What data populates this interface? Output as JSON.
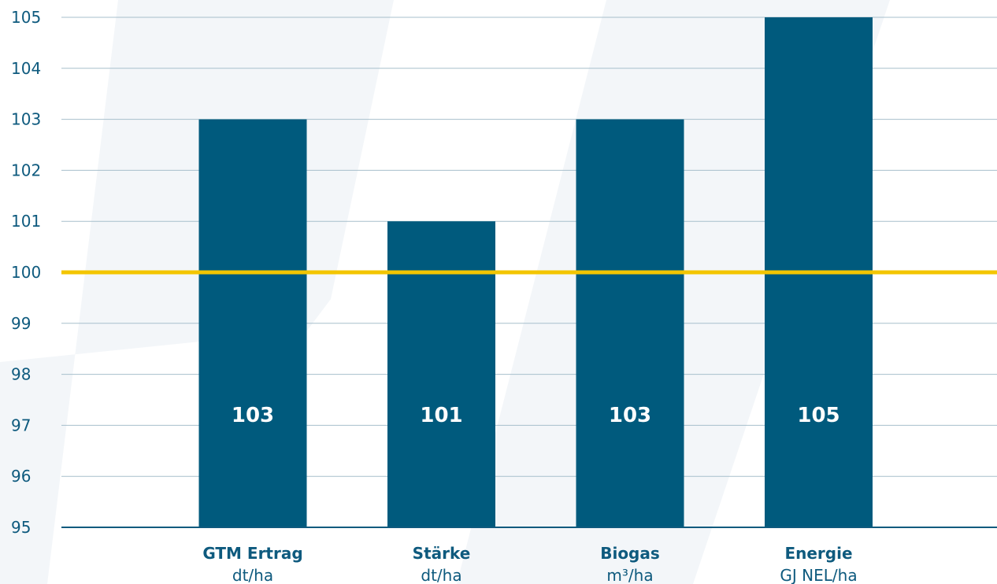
{
  "chart_data": {
    "type": "bar",
    "title": "",
    "xlabel": "",
    "ylabel": "",
    "ylim": [
      95,
      105
    ],
    "yticks": [
      95,
      96,
      97,
      98,
      99,
      100,
      101,
      102,
      103,
      104,
      105
    ],
    "grid": true,
    "categories": [
      {
        "name": "GTM Ertrag",
        "unit": "dt/ha"
      },
      {
        "name": "Stärke",
        "unit": "dt/ha"
      },
      {
        "name": "Biogas",
        "unit": "m³/ha"
      },
      {
        "name": "Energie",
        "unit": "GJ NEL/ha"
      }
    ],
    "values": [
      103,
      101,
      103,
      105
    ],
    "data_labels": [
      "103",
      "101",
      "103",
      "105"
    ],
    "reference_line": {
      "value": 100,
      "color": "#f3c500"
    },
    "colors": {
      "bar": "#005a7d",
      "grid": "#a7bfcc",
      "axis": "#0e5a7e",
      "text": "#0e5a7e",
      "label_on_bar": "#ffffff",
      "watermark": "#f2f5f8"
    }
  }
}
